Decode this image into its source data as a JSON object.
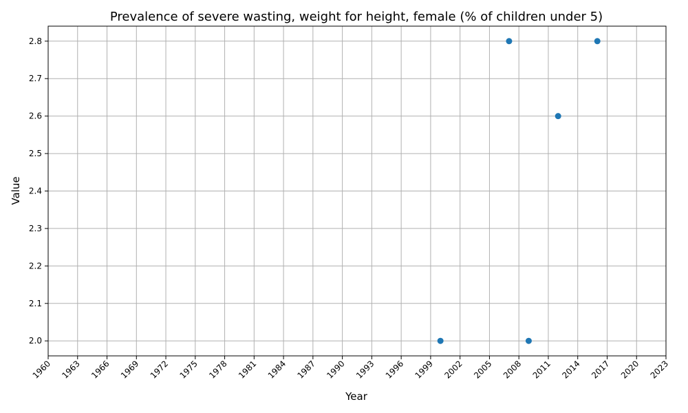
{
  "chart_data": {
    "type": "scatter",
    "title": "Prevalence of severe wasting, weight for height, female (% of children under 5)",
    "xlabel": "Year",
    "ylabel": "Value",
    "xlim": [
      1960,
      2023
    ],
    "ylim": [
      1.96,
      2.84
    ],
    "x_ticks": [
      1960,
      1963,
      1966,
      1969,
      1972,
      1975,
      1978,
      1981,
      1984,
      1987,
      1990,
      1993,
      1996,
      1999,
      2002,
      2005,
      2008,
      2011,
      2014,
      2017,
      2020,
      2023
    ],
    "y_ticks": [
      2.0,
      2.1,
      2.2,
      2.3,
      2.4,
      2.5,
      2.6,
      2.7,
      2.8
    ],
    "y_tick_labels": [
      "2.0",
      "2.1",
      "2.2",
      "2.3",
      "2.4",
      "2.5",
      "2.6",
      "2.7",
      "2.8"
    ],
    "grid": true,
    "series": [
      {
        "color": "#1f77b4",
        "points": [
          {
            "x": 2000,
            "y": 2.0
          },
          {
            "x": 2007,
            "y": 2.8
          },
          {
            "x": 2009,
            "y": 2.0
          },
          {
            "x": 2012,
            "y": 2.6
          },
          {
            "x": 2016,
            "y": 2.8
          }
        ]
      }
    ]
  }
}
